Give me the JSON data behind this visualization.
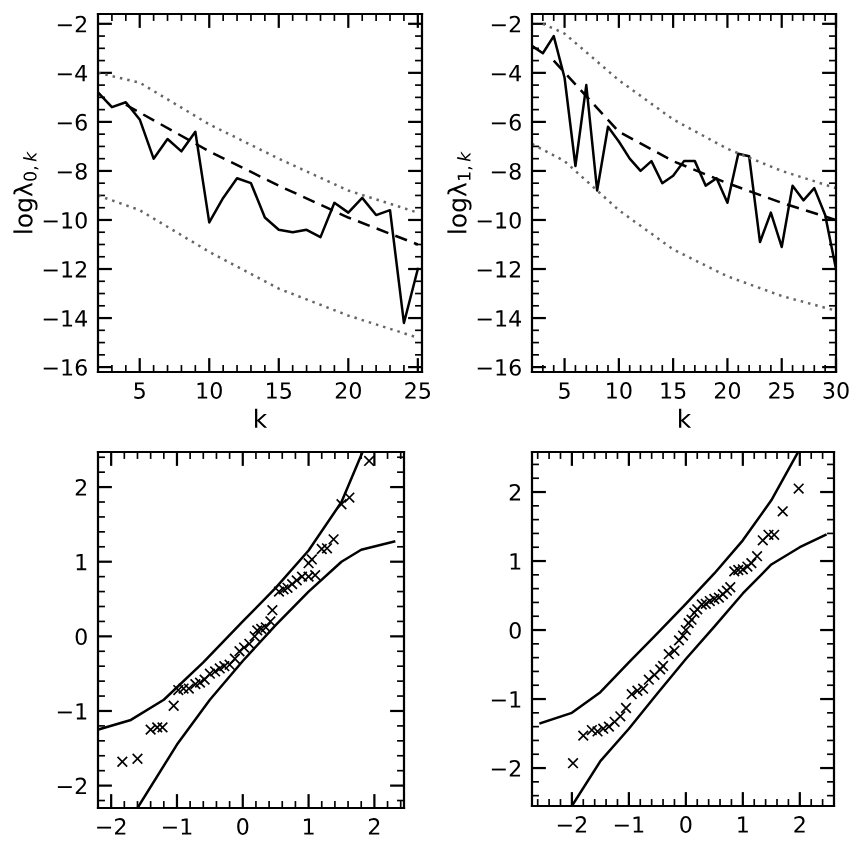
{
  "chart_data": [
    {
      "type": "line",
      "xlabel": "k",
      "ylabel": "logλ$_{0,k}$",
      "xlim": [
        2,
        25.3
      ],
      "ylim": [
        -16.2,
        -1.6
      ],
      "xticks": [
        5,
        10,
        15,
        20,
        25
      ],
      "yticks": [
        -16,
        -14,
        -12,
        -10,
        -8,
        -6,
        -4,
        -2
      ],
      "grid": false,
      "legend": false,
      "series": [
        {
          "line_style": "solid",
          "color": "#000000",
          "x": [
            2,
            3,
            4,
            5,
            6,
            7,
            8,
            9,
            10,
            11,
            12,
            13,
            14,
            15,
            16,
            17,
            18,
            19,
            20,
            21,
            22,
            23,
            24,
            25
          ],
          "values": [
            -4.8,
            -5.4,
            -5.2,
            -5.9,
            -7.5,
            -6.7,
            -7.2,
            -6.4,
            -10.1,
            -9.1,
            -8.3,
            -8.5,
            -9.9,
            -10.4,
            -10.5,
            -10.4,
            -10.7,
            -9.3,
            -9.7,
            -9.1,
            -9.8,
            -9.6,
            -14.2,
            -12.0
          ]
        },
        {
          "type": "line",
          "line_style": "dashed",
          "color": "#000000",
          "x": [
            4,
            10,
            15,
            20,
            25
          ],
          "values": [
            -5.3,
            -7.2,
            -8.6,
            -9.9,
            -11.0
          ]
        },
        {
          "type": "line",
          "line_style": "dotted",
          "color": "#666666",
          "x": [
            2,
            5,
            10,
            15,
            20,
            25
          ],
          "values": [
            -4.0,
            -4.4,
            -6.1,
            -7.5,
            -8.8,
            -9.7
          ]
        },
        {
          "type": "line",
          "line_style": "dotted",
          "color": "#666666",
          "x": [
            2,
            5,
            10,
            15,
            20,
            25
          ],
          "values": [
            -9.0,
            -9.6,
            -11.3,
            -12.8,
            -13.9,
            -14.8
          ]
        }
      ]
    },
    {
      "type": "line",
      "xlabel": "k",
      "ylabel": "logλ$_{1,k}$",
      "xlim": [
        2,
        30
      ],
      "ylim": [
        -16.2,
        -1.6
      ],
      "xticks": [
        5,
        10,
        15,
        20,
        25,
        30
      ],
      "yticks": [
        -16,
        -14,
        -12,
        -10,
        -8,
        -6,
        -4,
        -2
      ],
      "grid": false,
      "legend": false,
      "series": [
        {
          "line_style": "solid",
          "color": "#000000",
          "x": [
            2,
            3,
            4,
            5,
            6,
            7,
            8,
            9,
            10,
            11,
            12,
            13,
            14,
            15,
            16,
            17,
            18,
            19,
            20,
            21,
            22,
            23,
            24,
            25,
            26,
            27,
            28,
            29,
            30
          ],
          "values": [
            -2.9,
            -3.2,
            -2.5,
            -4.2,
            -7.8,
            -4.5,
            -8.8,
            -6.2,
            -6.8,
            -7.5,
            -8.0,
            -7.6,
            -8.5,
            -8.2,
            -7.6,
            -7.6,
            -8.6,
            -8.3,
            -9.3,
            -7.3,
            -7.4,
            -10.9,
            -9.7,
            -11.1,
            -8.6,
            -9.2,
            -8.7,
            -9.8,
            -12.0
          ]
        },
        {
          "type": "line",
          "line_style": "dashed",
          "color": "#000000",
          "x": [
            4,
            10,
            15,
            20,
            25,
            30
          ],
          "values": [
            -3.5,
            -6.4,
            -7.6,
            -8.5,
            -9.3,
            -10.0
          ]
        },
        {
          "type": "line",
          "line_style": "dotted",
          "color": "#666666",
          "x": [
            3,
            5,
            10,
            15,
            20,
            25,
            30
          ],
          "values": [
            -2.0,
            -2.4,
            -4.3,
            -5.9,
            -7.1,
            -8.0,
            -8.7
          ]
        },
        {
          "type": "line",
          "line_style": "dotted",
          "color": "#666666",
          "x": [
            2,
            5,
            10,
            15,
            20,
            25,
            30
          ],
          "values": [
            -6.9,
            -7.6,
            -9.6,
            -11.2,
            -12.3,
            -13.1,
            -13.7
          ]
        }
      ]
    },
    {
      "type": "scatter",
      "xlim": [
        -2.2,
        2.45
      ],
      "ylim": [
        -2.3,
        2.47
      ],
      "xticks": [
        -2,
        -1,
        0,
        1,
        2
      ],
      "yticks": [
        -2,
        -1,
        0,
        1,
        2
      ],
      "grid": false,
      "legend": false,
      "series": [
        {
          "marker": "cross",
          "color": "#000000",
          "x": [
            -1.83,
            -1.6,
            -1.4,
            -1.3,
            -1.22,
            -1.05,
            -0.98,
            -0.9,
            -0.82,
            -0.72,
            -0.65,
            -0.58,
            -0.5,
            -0.42,
            -0.35,
            -0.28,
            -0.2,
            -0.12,
            -0.05,
            0.02,
            0.1,
            0.18,
            0.22,
            0.28,
            0.35,
            0.42,
            0.45,
            0.55,
            0.62,
            0.68,
            0.75,
            0.82,
            0.9,
            1.0,
            1.1,
            1.0,
            1.05,
            1.2,
            1.28,
            1.38,
            1.5,
            1.62,
            1.92
          ],
          "values": [
            -1.68,
            -1.64,
            -1.25,
            -1.22,
            -1.22,
            -0.93,
            -0.72,
            -0.7,
            -0.7,
            -0.64,
            -0.62,
            -0.58,
            -0.5,
            -0.47,
            -0.43,
            -0.4,
            -0.38,
            -0.3,
            -0.2,
            -0.15,
            -0.1,
            0.0,
            0.08,
            0.1,
            0.12,
            0.2,
            0.35,
            0.6,
            0.63,
            0.65,
            0.7,
            0.75,
            0.8,
            0.8,
            0.82,
            0.98,
            1.03,
            1.17,
            1.18,
            1.3,
            1.77,
            1.86,
            2.35
          ]
        },
        {
          "type": "line",
          "line_style": "solid",
          "color": "#000000",
          "x": [
            -2.2,
            -1.7,
            -1.2,
            -0.6,
            0,
            0.5,
            1,
            1.5,
            1.82
          ],
          "values": [
            -1.25,
            -1.12,
            -0.85,
            -0.35,
            0.2,
            0.65,
            1.15,
            1.8,
            2.47
          ]
        },
        {
          "type": "line",
          "line_style": "solid",
          "color": "#000000",
          "x": [
            -1.6,
            -1,
            -0.5,
            0,
            0.5,
            1,
            1.5,
            1.8,
            2.3
          ],
          "values": [
            -2.3,
            -1.45,
            -0.85,
            -0.33,
            0.15,
            0.6,
            1.0,
            1.16,
            1.27
          ]
        }
      ]
    },
    {
      "type": "scatter",
      "xlim": [
        -2.7,
        2.6
      ],
      "ylim": [
        -2.55,
        2.58
      ],
      "xticks": [
        -2,
        -1,
        0,
        1,
        2
      ],
      "yticks": [
        -2,
        -1,
        0,
        1,
        2
      ],
      "grid": false,
      "legend": false,
      "series": [
        {
          "marker": "cross",
          "color": "#000000",
          "x": [
            -1.98,
            -1.8,
            -1.65,
            -1.55,
            -1.45,
            -1.35,
            -1.25,
            -1.15,
            -1.05,
            -0.95,
            -0.85,
            -0.75,
            -0.65,
            -0.55,
            -0.45,
            -0.4,
            -0.3,
            -0.2,
            -0.12,
            -0.05,
            0.0,
            0.05,
            0.1,
            0.15,
            0.2,
            0.28,
            0.35,
            0.42,
            0.5,
            0.58,
            0.65,
            0.72,
            0.78,
            0.85,
            0.92,
            1.0,
            1.08,
            1.15,
            1.25,
            1.35,
            1.45,
            1.55,
            1.7,
            1.98
          ],
          "values": [
            -1.93,
            -1.53,
            -1.45,
            -1.47,
            -1.43,
            -1.4,
            -1.33,
            -1.25,
            -1.13,
            -0.93,
            -0.88,
            -0.85,
            -0.72,
            -0.65,
            -0.57,
            -0.52,
            -0.35,
            -0.3,
            -0.15,
            -0.08,
            0.0,
            0.1,
            0.15,
            0.25,
            0.3,
            0.37,
            0.38,
            0.42,
            0.45,
            0.47,
            0.52,
            0.57,
            0.62,
            0.85,
            0.87,
            0.88,
            0.92,
            0.97,
            1.07,
            1.3,
            1.38,
            1.38,
            1.72,
            2.05
          ]
        },
        {
          "type": "line",
          "line_style": "solid",
          "color": "#000000",
          "x": [
            -2.55,
            -2,
            -1.5,
            -1,
            -0.5,
            0,
            0.5,
            1,
            1.5,
            1.97
          ],
          "values": [
            -1.35,
            -1.2,
            -0.9,
            -0.47,
            -0.05,
            0.38,
            0.82,
            1.3,
            1.88,
            2.58
          ]
        },
        {
          "type": "line",
          "line_style": "solid",
          "color": "#000000",
          "x": [
            -2,
            -1.5,
            -1,
            -0.5,
            0,
            0.5,
            1,
            1.5,
            2,
            2.45
          ],
          "values": [
            -2.55,
            -1.9,
            -1.43,
            -0.92,
            -0.42,
            0.05,
            0.53,
            0.95,
            1.2,
            1.38
          ]
        }
      ]
    }
  ]
}
